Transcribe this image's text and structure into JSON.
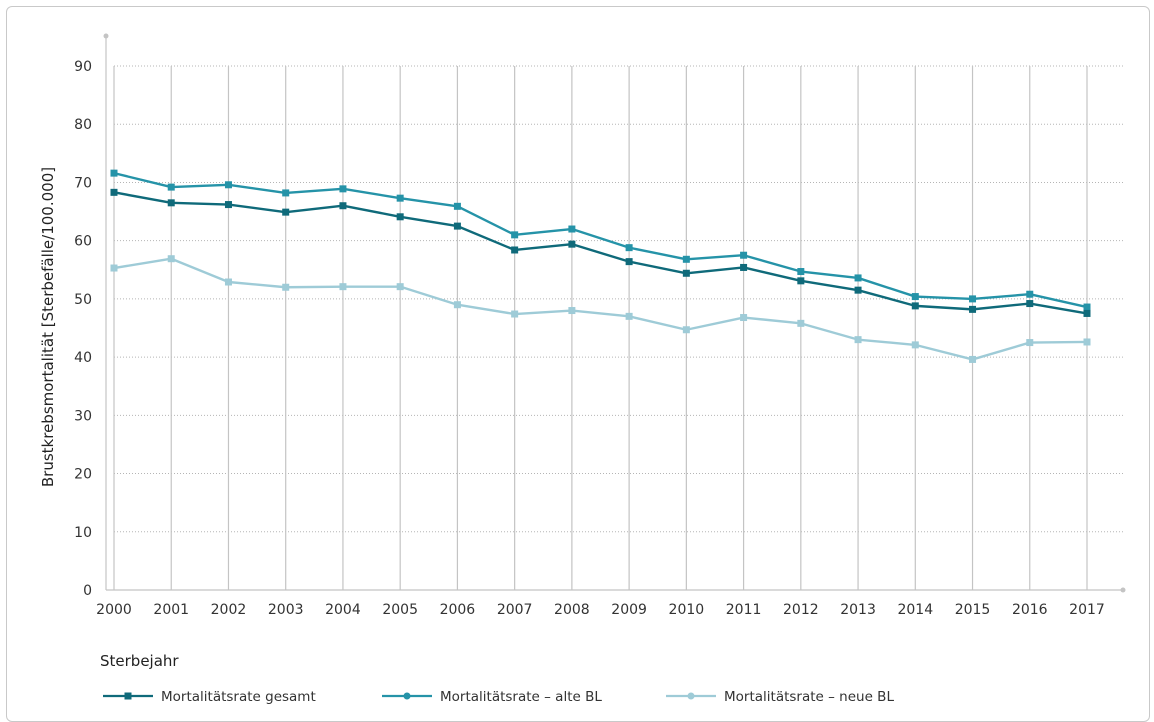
{
  "chart_data": {
    "type": "line",
    "xlabel": "Sterbejahr",
    "ylabel": "Brustkrebsmortalität [Sterbefälle/100.000]",
    "ylim": [
      0,
      90
    ],
    "y_ticks": [
      "0",
      "10",
      "20",
      "30",
      "40",
      "50",
      "60",
      "70",
      "80",
      "90"
    ],
    "categories": [
      "2000",
      "2001",
      "2002",
      "2003",
      "2004",
      "2005",
      "2006",
      "2007",
      "2008",
      "2009",
      "2010",
      "2011",
      "2012",
      "2013",
      "2014",
      "2015",
      "2016",
      "2017"
    ],
    "grid": true,
    "legend_position": "bottom",
    "series": [
      {
        "name": "Mortalitätsrate gesamt",
        "color": "#0f6a7a",
        "marker": "square",
        "values": [
          68.3,
          66.5,
          66.2,
          64.9,
          66.0,
          64.1,
          62.5,
          58.4,
          59.4,
          56.4,
          54.4,
          55.4,
          53.1,
          51.5,
          48.8,
          48.2,
          49.2,
          47.5
        ]
      },
      {
        "name": "Mortalitätsrate – alte BL",
        "color": "#2593a8",
        "marker": "circle",
        "values": [
          71.6,
          69.2,
          69.6,
          68.2,
          68.9,
          67.3,
          65.9,
          61.0,
          62.0,
          58.8,
          56.8,
          57.5,
          54.7,
          53.6,
          50.4,
          50.0,
          50.8,
          48.6
        ]
      },
      {
        "name": "Mortalitätsrate – neue BL",
        "color": "#9ecbd7",
        "marker": "circle",
        "values": [
          55.3,
          56.9,
          52.9,
          52.0,
          52.1,
          52.1,
          49.0,
          47.4,
          48.0,
          47.0,
          44.7,
          46.8,
          45.8,
          43.0,
          42.1,
          39.6,
          42.5,
          42.6
        ]
      }
    ]
  }
}
